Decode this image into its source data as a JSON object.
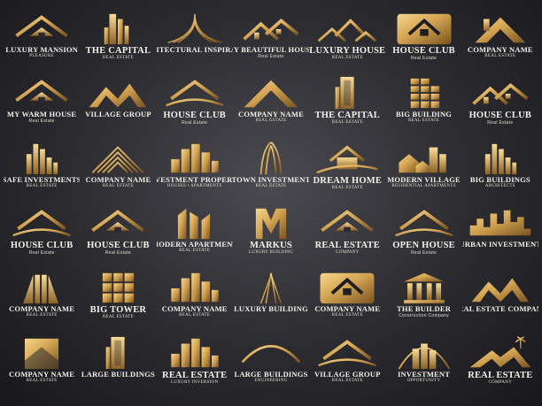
{
  "colors": {
    "gold_light": "#f6d68d",
    "gold": "#c8994a",
    "gold_dark": "#7a5420",
    "text": "#f3f0ea"
  },
  "logos": [
    {
      "name": "LUXURY MANSION",
      "tag": "PLEASURE",
      "icon": "roof-house-icon"
    },
    {
      "name": "THE CAPITAL",
      "tag": "REAL ESTATE",
      "icon": "skyscraper-icon"
    },
    {
      "name": "ARCHITECTURAL INSPIRATION",
      "tag": "",
      "icon": "tent-roof-icon"
    },
    {
      "name": "MY BEAUTIFUL HOUSE",
      "tag": "Real Estate",
      "icon": "twin-houses-icon"
    },
    {
      "name": "LUXURY HOUSE",
      "tag": "REAL ESTATE",
      "icon": "houses-icon"
    },
    {
      "name": "HOUSE CLUB",
      "tag": "Real Estate",
      "icon": "house-badge-icon"
    },
    {
      "name": "COMPANY NAME",
      "tag": "REAL ESTATE",
      "icon": "chimney-roof-icon"
    },
    {
      "name": "MY WARM HOUSE",
      "tag": "Real Estate",
      "icon": "roof-house-icon"
    },
    {
      "name": "VILLAGE GROUP",
      "tag": "",
      "icon": "mountain-roof-icon"
    },
    {
      "name": "HOUSE CLUB",
      "tag": "Real Estate",
      "icon": "roof-swoosh-icon"
    },
    {
      "name": "COMPANY NAME",
      "tag": "REAL ESTATE",
      "icon": "chevron-roof-icon"
    },
    {
      "name": "THE CAPITAL",
      "tag": "REAL ESTATE",
      "icon": "tower-icon"
    },
    {
      "name": "BIG BUILDING",
      "tag": "REAL ESTATE",
      "icon": "block-building-icon"
    },
    {
      "name": "HOUSE CLUB",
      "tag": "Real Estate",
      "icon": "twin-houses-icon"
    },
    {
      "name": "SAFE INVESTMENTS",
      "tag": "REAL ESTATE",
      "icon": "skyline-icon"
    },
    {
      "name": "COMPANY NAME",
      "tag": "REAL ESTATE",
      "icon": "stripe-roof-icon"
    },
    {
      "name": "INVESTMENT PROPERTY",
      "tag": "HOUSES • APARTMENTS",
      "icon": "city-blocks-icon"
    },
    {
      "name": "TOWN INVESTMENT",
      "tag": "REAL ESTATE",
      "icon": "curved-tower-icon"
    },
    {
      "name": "DREAM HOME",
      "tag": "REAL ESTATE",
      "icon": "house-swoosh-icon"
    },
    {
      "name": "MODERN VILLAGE",
      "tag": "RESIDENTIAL APARTMENTS",
      "icon": "village-icon"
    },
    {
      "name": "BIG BUILDINGS",
      "tag": "ARCHITECTS",
      "icon": "skyline-icon"
    },
    {
      "name": "HOUSE CLUB",
      "tag": "Real Estate",
      "icon": "roof-swoosh-icon"
    },
    {
      "name": "HOUSE CLUB",
      "tag": "Real Estate",
      "icon": "roof-house-icon"
    },
    {
      "name": "MODERN APARTMENT",
      "tag": "REAL ESTATE",
      "icon": "slanted-towers-icon"
    },
    {
      "name": "MARKUS",
      "tag": "LUXURY BUILDING",
      "icon": "m-monogram-icon"
    },
    {
      "name": "REAL ESTATE",
      "tag": "COMPANY",
      "icon": "roof-house-icon"
    },
    {
      "name": "OPEN HOUSE",
      "tag": "Real Estate",
      "icon": "roof-swoosh-icon"
    },
    {
      "name": "URBAN INVESTMENT",
      "tag": "",
      "icon": "skyline-flat-icon"
    },
    {
      "name": "COMPANY NAME",
      "tag": "REAL ESTATE",
      "icon": "bars-tower-icon"
    },
    {
      "name": "BIG TOWER",
      "tag": "REAL ESTATE",
      "icon": "cube-tower-icon"
    },
    {
      "name": "COMPANY NAME",
      "tag": "REAL ESTATE",
      "icon": "city-blocks-icon"
    },
    {
      "name": "LUXURY BUILDING",
      "tag": "",
      "icon": "spire-icon"
    },
    {
      "name": "COMPANY NAME",
      "tag": "REAL ESTATE",
      "icon": "house-badge-icon"
    },
    {
      "name": "THE BUILDER",
      "tag": "Construction Company",
      "icon": "columns-icon"
    },
    {
      "name": "REAL ESTATE COMPANY",
      "tag": "",
      "icon": "mountain-roof-icon"
    },
    {
      "name": "COMPANY NAME",
      "tag": "REAL ESTATE",
      "icon": "square-roof-icon"
    },
    {
      "name": "LARGE BUILDINGS",
      "tag": "",
      "icon": "tower-icon"
    },
    {
      "name": "REAL ESTATE",
      "tag": "LUXURY INVERSION",
      "icon": "city-blocks-icon"
    },
    {
      "name": "LARGE BUILDINGS",
      "tag": "ENGINEERING",
      "icon": "bridge-arc-icon"
    },
    {
      "name": "VILLAGE GROUP",
      "tag": "REAL ESTATE",
      "icon": "roof-swoosh-icon"
    },
    {
      "name": "INVESTMENT",
      "tag": "OPPORTUNITY",
      "icon": "arch-building-icon"
    },
    {
      "name": "REAL ESTATE",
      "tag": "COMPANY",
      "icon": "palm-roof-icon"
    }
  ]
}
